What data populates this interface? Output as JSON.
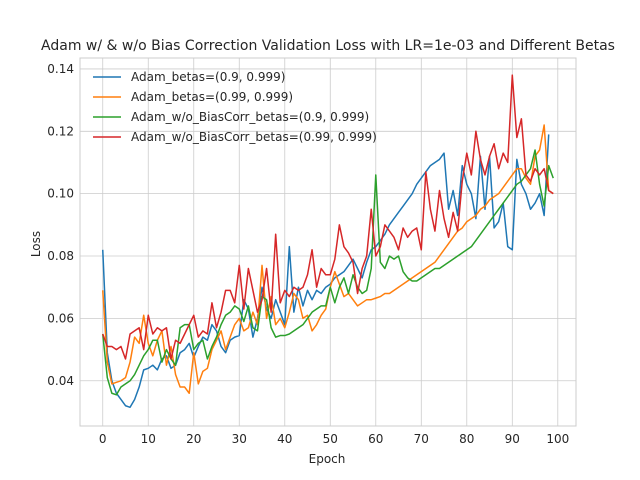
{
  "chart_data": {
    "type": "line",
    "title": "Adam w/ & w/o Bias Correction Validation Loss with LR=1e-03 and Different Betas",
    "xlabel": "Epoch",
    "ylabel": "Loss",
    "xlim": [
      -5,
      104
    ],
    "ylim": [
      0.0255,
      0.1435
    ],
    "xticks": [
      0,
      10,
      20,
      30,
      40,
      50,
      60,
      70,
      80,
      90,
      100
    ],
    "yticks": [
      0.04,
      0.06,
      0.08,
      0.1,
      0.12,
      0.14
    ],
    "ytick_labels": [
      "0.04",
      "0.06",
      "0.08",
      "0.10",
      "0.12",
      "0.14"
    ],
    "grid": true,
    "legend": "upper-left",
    "series": [
      {
        "name": "Adam_betas=(0.9, 0.999)",
        "color": "#1f77b4",
        "values": [
          0.082,
          0.049,
          0.04,
          0.036,
          0.034,
          0.032,
          0.0315,
          0.034,
          0.038,
          0.0435,
          0.044,
          0.045,
          0.0435,
          0.047,
          0.048,
          0.044,
          0.045,
          0.049,
          0.05,
          0.052,
          0.0475,
          0.051,
          0.054,
          0.053,
          0.058,
          0.056,
          0.051,
          0.049,
          0.053,
          0.054,
          0.0545,
          0.066,
          0.063,
          0.054,
          0.06,
          0.07,
          0.063,
          0.06,
          0.066,
          0.062,
          0.058,
          0.083,
          0.062,
          0.07,
          0.064,
          0.069,
          0.066,
          0.069,
          0.068,
          0.07,
          0.071,
          0.073,
          0.074,
          0.075,
          0.077,
          0.079,
          0.076,
          0.073,
          0.078,
          0.082,
          0.083,
          0.085,
          0.087,
          0.09,
          0.092,
          0.094,
          0.096,
          0.098,
          0.1,
          0.103,
          0.105,
          0.107,
          0.109,
          0.11,
          0.111,
          0.113,
          0.095,
          0.101,
          0.093,
          0.109,
          0.103,
          0.1,
          0.092,
          0.112,
          0.095,
          0.112,
          0.089,
          0.091,
          0.097,
          0.083,
          0.082,
          0.111,
          0.103,
          0.1,
          0.095,
          0.097,
          0.1,
          0.093,
          0.119
        ]
      },
      {
        "name": "Adam_betas=(0.99, 0.999)",
        "color": "#ff7f0e",
        "values": [
          0.069,
          0.046,
          0.039,
          0.0395,
          0.04,
          0.041,
          0.046,
          0.054,
          0.052,
          0.061,
          0.052,
          0.048,
          0.053,
          0.056,
          0.045,
          0.051,
          0.042,
          0.038,
          0.038,
          0.036,
          0.049,
          0.039,
          0.043,
          0.044,
          0.05,
          0.053,
          0.056,
          0.05,
          0.054,
          0.058,
          0.06,
          0.056,
          0.057,
          0.062,
          0.058,
          0.077,
          0.06,
          0.067,
          0.058,
          0.06,
          0.057,
          0.062,
          0.068,
          0.066,
          0.06,
          0.061,
          0.056,
          0.058,
          0.061,
          0.063,
          0.07,
          0.075,
          0.071,
          0.067,
          0.068,
          0.066,
          0.064,
          0.065,
          0.066,
          0.066,
          0.0665,
          0.067,
          0.068,
          0.068,
          0.069,
          0.07,
          0.071,
          0.072,
          0.073,
          0.074,
          0.075,
          0.076,
          0.077,
          0.078,
          0.08,
          0.082,
          0.084,
          0.086,
          0.088,
          0.089,
          0.091,
          0.092,
          0.093,
          0.095,
          0.096,
          0.098,
          0.099,
          0.1,
          0.102,
          0.104,
          0.106,
          0.108,
          0.108,
          0.105,
          0.103,
          0.112,
          0.114,
          0.122,
          0.101,
          0.1
        ]
      },
      {
        "name": "Adam_w/o_BiasCorr_betas=(0.9, 0.999)",
        "color": "#2ca02c",
        "values": [
          0.055,
          0.041,
          0.036,
          0.0355,
          0.038,
          0.039,
          0.04,
          0.042,
          0.045,
          0.048,
          0.05,
          0.053,
          0.053,
          0.046,
          0.05,
          0.047,
          0.045,
          0.057,
          0.058,
          0.058,
          0.05,
          0.052,
          0.053,
          0.047,
          0.051,
          0.054,
          0.058,
          0.061,
          0.062,
          0.064,
          0.063,
          0.059,
          0.064,
          0.057,
          0.056,
          0.067,
          0.066,
          0.057,
          0.054,
          0.0545,
          0.0545,
          0.055,
          0.056,
          0.057,
          0.058,
          0.06,
          0.062,
          0.063,
          0.064,
          0.064,
          0.07,
          0.065,
          0.07,
          0.073,
          0.068,
          0.074,
          0.07,
          0.068,
          0.069,
          0.076,
          0.106,
          0.078,
          0.076,
          0.08,
          0.079,
          0.08,
          0.075,
          0.073,
          0.072,
          0.072,
          0.073,
          0.074,
          0.075,
          0.076,
          0.076,
          0.077,
          0.078,
          0.079,
          0.08,
          0.081,
          0.082,
          0.083,
          0.085,
          0.087,
          0.089,
          0.091,
          0.093,
          0.095,
          0.097,
          0.099,
          0.101,
          0.103,
          0.104,
          0.106,
          0.108,
          0.114,
          0.103,
          0.096,
          0.109,
          0.105
        ]
      },
      {
        "name": "Adam_w/o_BiasCorr_betas=(0.99, 0.999)",
        "color": "#d62728",
        "values": [
          0.055,
          0.051,
          0.051,
          0.05,
          0.051,
          0.047,
          0.055,
          0.056,
          0.057,
          0.05,
          0.061,
          0.055,
          0.057,
          0.056,
          0.057,
          0.047,
          0.053,
          0.052,
          0.055,
          0.058,
          0.061,
          0.054,
          0.056,
          0.055,
          0.065,
          0.057,
          0.062,
          0.069,
          0.069,
          0.065,
          0.077,
          0.063,
          0.076,
          0.069,
          0.062,
          0.066,
          0.076,
          0.062,
          0.087,
          0.065,
          0.069,
          0.067,
          0.07,
          0.069,
          0.07,
          0.074,
          0.082,
          0.07,
          0.076,
          0.074,
          0.074,
          0.079,
          0.09,
          0.083,
          0.081,
          0.078,
          0.068,
          0.076,
          0.08,
          0.095,
          0.08,
          0.083,
          0.09,
          0.088,
          0.086,
          0.082,
          0.089,
          0.086,
          0.088,
          0.089,
          0.082,
          0.107,
          0.095,
          0.088,
          0.101,
          0.092,
          0.086,
          0.094,
          0.088,
          0.104,
          0.113,
          0.106,
          0.12,
          0.111,
          0.106,
          0.112,
          0.116,
          0.108,
          0.113,
          0.11,
          0.138,
          0.118,
          0.124,
          0.106,
          0.104,
          0.108,
          0.106,
          0.108,
          0.101,
          0.1
        ]
      }
    ]
  }
}
